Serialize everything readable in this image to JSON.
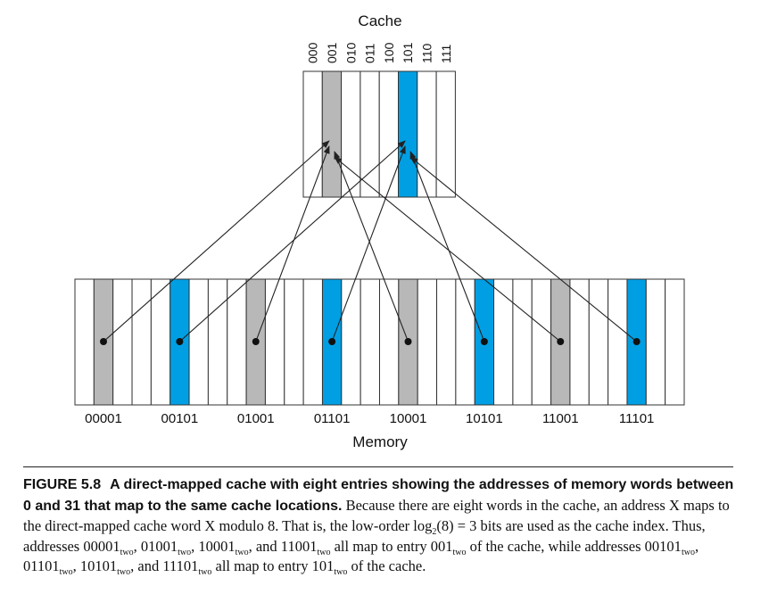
{
  "diagram": {
    "cache_label": "Cache",
    "memory_label": "Memory",
    "cache_indices": [
      "000",
      "001",
      "010",
      "011",
      "100",
      "101",
      "110",
      "111"
    ],
    "cache_highlight": {
      "001": "gray",
      "101": "blue"
    },
    "memory_addresses": [
      "00001",
      "00101",
      "01001",
      "01101",
      "10001",
      "10101",
      "11001",
      "11101"
    ],
    "memory_highlight": [
      "gray",
      "blue",
      "gray",
      "blue",
      "gray",
      "blue",
      "gray",
      "blue"
    ],
    "mappings": [
      {
        "from": "00001",
        "to": "001"
      },
      {
        "from": "00101",
        "to": "101"
      },
      {
        "from": "01001",
        "to": "001"
      },
      {
        "from": "01101",
        "to": "101"
      },
      {
        "from": "10001",
        "to": "001"
      },
      {
        "from": "10101",
        "to": "101"
      },
      {
        "from": "11001",
        "to": "001"
      },
      {
        "from": "11101",
        "to": "101"
      }
    ],
    "colors": {
      "gray": "#b8b8b8",
      "blue": "#009fe3",
      "line": "#222222"
    }
  },
  "caption": {
    "label": "FIGURE 5.8",
    "title": "A direct-mapped cache with eight entries showing the addresses of memory words between 0 and 31 that map to the same cache locations.",
    "body": {
      "s1": " Because there are eight words in the cache, an address X maps to the direct-mapped cache word X modulo 8. That is, the low-order log",
      "sub_2": "2",
      "s2": "(8) = 3 bits are used as the cache index. Thus, addresses 00001",
      "sub_two_1": "two",
      "s3": ", 01001",
      "sub_two_2": "two",
      "s4": ", 10001",
      "sub_two_3": "two",
      "s5": ", and 11001",
      "sub_two_4": "two",
      "s6": " all map to entry 001",
      "sub_two_5": "two",
      "s7": " of the cache, while addresses 00101",
      "sub_two_6": "two",
      "s8": ", 01101",
      "sub_two_7": "two",
      "s9": ", 10101",
      "sub_two_8": "two",
      "s10": ", and 11101",
      "sub_two_9": "two",
      "s11": " all map to entry 101",
      "sub_two_10": "two",
      "s12": " of the cache."
    }
  }
}
